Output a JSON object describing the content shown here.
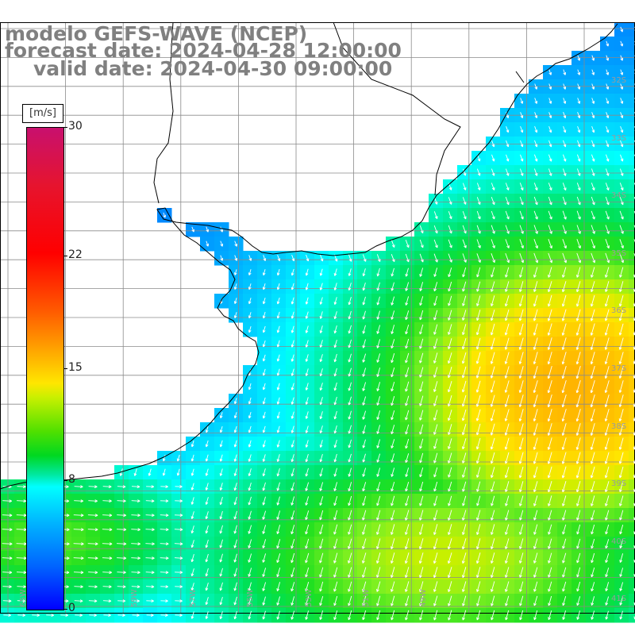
{
  "title": {
    "model": "modelo GEFS-WAVE (NCEP)",
    "forecast": "forecast date: 2024-04-28 12:00:00",
    "valid": "valid date: 2024-04-30 09:00:00"
  },
  "colorbar": {
    "units": "[m/s]",
    "ticks": [
      {
        "value": 30,
        "label": "30"
      },
      {
        "value": 22,
        "label": "22"
      },
      {
        "value": 15,
        "label": "15"
      },
      {
        "value": 8,
        "label": "8"
      },
      {
        "value": 0,
        "label": "0"
      }
    ],
    "min": 0,
    "max": 30
  },
  "grid": {
    "lon_labels": [
      "65W",
      "59W",
      "57W",
      "55W",
      "53W",
      "51W",
      "49W"
    ],
    "lat_labels": [
      "32S",
      "33S",
      "34S",
      "35S",
      "36S",
      "37S",
      "38S",
      "39S",
      "40S",
      "41S"
    ]
  },
  "colors": {
    "land": "#ffffff",
    "coast": "#000000",
    "grid": "#8a8a8a",
    "arrow": "#ffffff"
  }
}
